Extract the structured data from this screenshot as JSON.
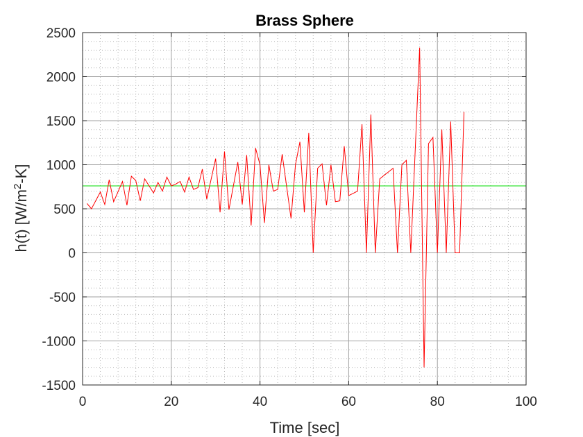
{
  "chart_data": {
    "type": "line",
    "title": "Brass Sphere",
    "xlabel": "Time [sec]",
    "ylabel_parts": [
      "h(t) [W/m",
      "2",
      "-K]"
    ],
    "xlim": [
      0,
      100
    ],
    "ylim": [
      -1500,
      2500
    ],
    "x_ticks": [
      0,
      20,
      40,
      60,
      80,
      100
    ],
    "x_tick_labels": [
      "0",
      "20",
      "40",
      "60",
      "80",
      "100"
    ],
    "y_ticks": [
      -1500,
      -1000,
      -500,
      0,
      500,
      1000,
      1500,
      2000,
      2500
    ],
    "y_tick_labels": [
      "-1500",
      "-1000",
      "-500",
      "0",
      "500",
      "1000",
      "1500",
      "2000",
      "2500"
    ],
    "grid": true,
    "minor_grid": true,
    "series": [
      {
        "color": "#ff0000",
        "x": [
          1,
          2,
          4,
          5,
          6,
          7,
          9,
          10,
          11,
          12,
          13,
          14,
          15,
          16,
          17,
          18,
          19,
          20,
          21,
          22,
          23,
          24,
          25,
          26,
          27,
          28,
          30,
          31,
          32,
          33,
          35,
          36,
          37,
          38,
          39,
          40,
          41,
          42,
          43,
          44,
          45,
          47,
          48,
          49,
          50,
          51,
          52,
          53,
          54,
          55,
          56,
          57,
          58,
          59,
          60,
          62,
          63,
          64,
          65,
          66,
          67,
          70,
          71,
          72,
          73,
          74,
          76,
          77,
          78,
          79,
          80,
          81,
          82,
          83,
          84,
          85,
          86
        ],
        "y": [
          560,
          500,
          690,
          550,
          830,
          580,
          810,
          540,
          870,
          820,
          590,
          840,
          760,
          680,
          800,
          700,
          860,
          760,
          780,
          810,
          690,
          860,
          720,
          740,
          950,
          610,
          1070,
          460,
          1150,
          490,
          1030,
          550,
          1110,
          310,
          1190,
          1000,
          340,
          1000,
          700,
          720,
          1120,
          390,
          1000,
          1260,
          460,
          1360,
          0,
          960,
          1010,
          540,
          1000,
          580,
          590,
          1210,
          650,
          700,
          1460,
          0,
          1570,
          0,
          840,
          960,
          0,
          1000,
          1050,
          0,
          2330,
          -1300,
          1240,
          1310,
          0,
          1400,
          0,
          1490,
          0,
          0,
          1600
        ]
      },
      {
        "color": "#00dd00",
        "x": [
          0,
          100
        ],
        "y": [
          760,
          760
        ]
      }
    ]
  }
}
